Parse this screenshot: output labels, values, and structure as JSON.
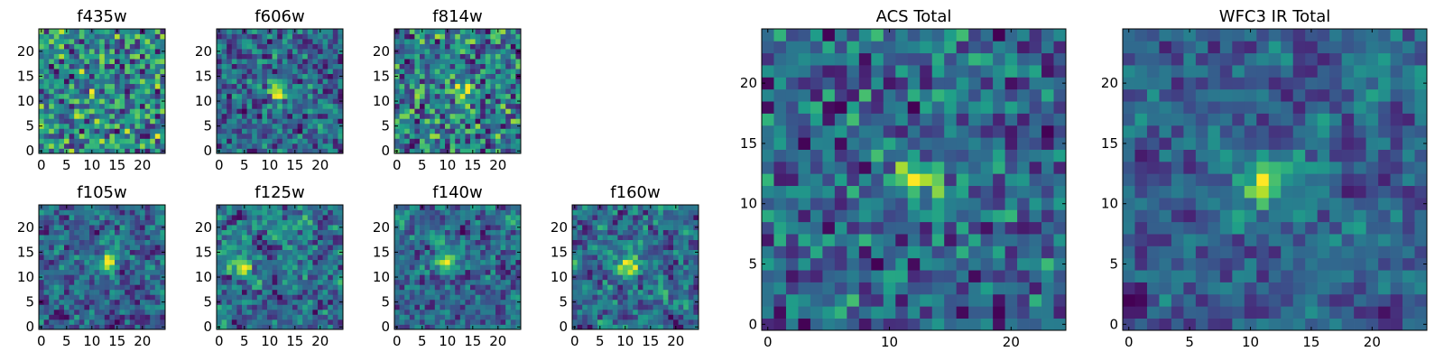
{
  "chart_data": [
    {
      "type": "heatmap",
      "title": "f435w",
      "xticks": [
        "0",
        "5",
        "10",
        "15",
        "20"
      ],
      "yticks": [
        "0",
        "5",
        "10",
        "15",
        "20"
      ],
      "grid_size": [
        25,
        25
      ],
      "xlim": [
        0,
        24
      ],
      "ylim": [
        0,
        24
      ],
      "colormap": "viridis",
      "bright_spot": null,
      "noise": "high"
    },
    {
      "type": "heatmap",
      "title": "f606w",
      "xticks": [
        "0",
        "5",
        "10",
        "15",
        "20"
      ],
      "yticks": [
        "0",
        "5",
        "10",
        "15",
        "20"
      ],
      "grid_size": [
        25,
        25
      ],
      "xlim": [
        0,
        24
      ],
      "ylim": [
        0,
        24
      ],
      "colormap": "viridis",
      "bright_spot": [
        12,
        12
      ],
      "noise": "high"
    },
    {
      "type": "heatmap",
      "title": "f814w",
      "xticks": [
        "0",
        "5",
        "10",
        "15",
        "20"
      ],
      "yticks": [
        "0",
        "5",
        "10",
        "15",
        "20"
      ],
      "grid_size": [
        25,
        25
      ],
      "xlim": [
        0,
        24
      ],
      "ylim": [
        0,
        24
      ],
      "colormap": "viridis",
      "bright_spot": [
        13,
        12
      ],
      "noise": "high"
    },
    {
      "type": "heatmap",
      "title": "f105w",
      "xticks": [
        "0",
        "5",
        "10",
        "15",
        "20"
      ],
      "yticks": [
        "0",
        "5",
        "10",
        "15",
        "20"
      ],
      "grid_size": [
        25,
        25
      ],
      "xlim": [
        0,
        24
      ],
      "ylim": [
        0,
        24
      ],
      "colormap": "viridis",
      "bright_spot": [
        13,
        13
      ],
      "noise": "smooth"
    },
    {
      "type": "heatmap",
      "title": "f125w",
      "xticks": [
        "0",
        "5",
        "10",
        "15",
        "20"
      ],
      "yticks": [
        "0",
        "5",
        "10",
        "15",
        "20"
      ],
      "grid_size": [
        25,
        25
      ],
      "xlim": [
        0,
        24
      ],
      "ylim": [
        0,
        24
      ],
      "colormap": "viridis",
      "bright_spot": [
        4,
        13
      ],
      "noise": "smooth"
    },
    {
      "type": "heatmap",
      "title": "f140w",
      "xticks": [
        "0",
        "5",
        "10",
        "15",
        "20"
      ],
      "yticks": [
        "0",
        "5",
        "10",
        "15",
        "20"
      ],
      "grid_size": [
        25,
        25
      ],
      "xlim": [
        0,
        24
      ],
      "ylim": [
        0,
        24
      ],
      "colormap": "viridis",
      "bright_spot": [
        10,
        13
      ],
      "noise": "smooth"
    },
    {
      "type": "heatmap",
      "title": "f160w",
      "xticks": [
        "0",
        "5",
        "10",
        "15",
        "20"
      ],
      "yticks": [
        "0",
        "5",
        "10",
        "15",
        "20"
      ],
      "grid_size": [
        25,
        25
      ],
      "xlim": [
        0,
        24
      ],
      "ylim": [
        0,
        24
      ],
      "colormap": "viridis",
      "bright_spot": [
        11,
        12
      ],
      "noise": "smooth"
    },
    {
      "type": "heatmap",
      "title": "ACS Total",
      "xticks": [
        "0",
        "10",
        "20"
      ],
      "yticks": [
        "0",
        "5",
        "10",
        "15",
        "20"
      ],
      "grid_size": [
        25,
        25
      ],
      "xlim": [
        0,
        24
      ],
      "ylim": [
        0,
        24
      ],
      "colormap": "viridis",
      "bright_spot": [
        12,
        12
      ],
      "noise": "medium"
    },
    {
      "type": "heatmap",
      "title": "WFC3 IR Total",
      "xticks": [
        "0",
        "5",
        "10",
        "15",
        "20"
      ],
      "yticks": [
        "0",
        "5",
        "10",
        "15",
        "20"
      ],
      "grid_size": [
        25,
        25
      ],
      "xlim": [
        0,
        24
      ],
      "ylim": [
        0,
        24
      ],
      "colormap": "viridis",
      "bright_spot": [
        11,
        12
      ],
      "noise": "smooth"
    }
  ]
}
